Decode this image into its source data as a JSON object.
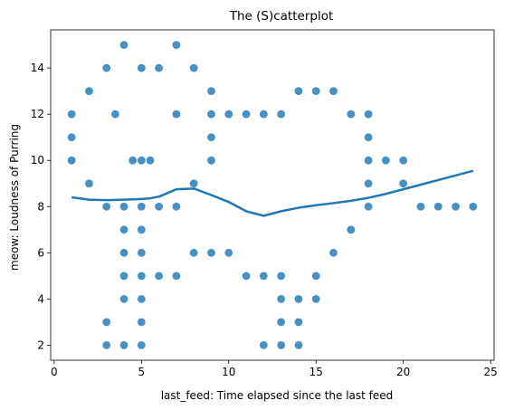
{
  "chart_data": {
    "type": "scatter",
    "title": "The (S)catterplot",
    "xlabel": "last_feed: Time elapsed since the last feed",
    "ylabel": "meow: Loudness of Purring",
    "xlim": [
      -0.2,
      25.2
    ],
    "ylim": [
      1.35,
      15.65
    ],
    "xticks": [
      0,
      5,
      10,
      15,
      20,
      25
    ],
    "yticks": [
      2,
      4,
      6,
      8,
      10,
      12,
      14
    ],
    "grid": false,
    "colors": {
      "points": "#1f77b4",
      "trend": "#1f77b4"
    },
    "points": [
      [
        1,
        12
      ],
      [
        1,
        11
      ],
      [
        1,
        10
      ],
      [
        2,
        13
      ],
      [
        2,
        9
      ],
      [
        3,
        14
      ],
      [
        3,
        8
      ],
      [
        3,
        3
      ],
      [
        3,
        2
      ],
      [
        3.5,
        12
      ],
      [
        4,
        15
      ],
      [
        4,
        8
      ],
      [
        4,
        7
      ],
      [
        4,
        6
      ],
      [
        4,
        5
      ],
      [
        4,
        4
      ],
      [
        4,
        2
      ],
      [
        4.5,
        10
      ],
      [
        5,
        14
      ],
      [
        5,
        10
      ],
      [
        5,
        8
      ],
      [
        5,
        7
      ],
      [
        5,
        6
      ],
      [
        5,
        5
      ],
      [
        5,
        4
      ],
      [
        5,
        3
      ],
      [
        5,
        2
      ],
      [
        5.5,
        10
      ],
      [
        6,
        14
      ],
      [
        6,
        8
      ],
      [
        6,
        5
      ],
      [
        7,
        15
      ],
      [
        7,
        12
      ],
      [
        7,
        8
      ],
      [
        7,
        5
      ],
      [
        8,
        14
      ],
      [
        8,
        9
      ],
      [
        8,
        6
      ],
      [
        9,
        13
      ],
      [
        9,
        12
      ],
      [
        9,
        11
      ],
      [
        9,
        10
      ],
      [
        9,
        6
      ],
      [
        10,
        12
      ],
      [
        10,
        6
      ],
      [
        11,
        12
      ],
      [
        11,
        5
      ],
      [
        12,
        12
      ],
      [
        12,
        5
      ],
      [
        12,
        2
      ],
      [
        13,
        12
      ],
      [
        13,
        5
      ],
      [
        13,
        4
      ],
      [
        13,
        3
      ],
      [
        13,
        2
      ],
      [
        14,
        13
      ],
      [
        14,
        4
      ],
      [
        14,
        3
      ],
      [
        14,
        2
      ],
      [
        15,
        13
      ],
      [
        15,
        5
      ],
      [
        15,
        4
      ],
      [
        16,
        13
      ],
      [
        16,
        6
      ],
      [
        17,
        12
      ],
      [
        17,
        7
      ],
      [
        18,
        12
      ],
      [
        18,
        11
      ],
      [
        18,
        10
      ],
      [
        18,
        9
      ],
      [
        18,
        8
      ],
      [
        19,
        10
      ],
      [
        20,
        10
      ],
      [
        20,
        9
      ],
      [
        21,
        8
      ],
      [
        22,
        8
      ],
      [
        23,
        8
      ],
      [
        24,
        8
      ]
    ],
    "trend": [
      [
        1,
        8.4
      ],
      [
        2,
        8.3
      ],
      [
        3,
        8.28
      ],
      [
        4,
        8.3
      ],
      [
        5,
        8.33
      ],
      [
        5.5,
        8.36
      ],
      [
        6,
        8.43
      ],
      [
        7,
        8.75
      ],
      [
        8,
        8.78
      ],
      [
        9,
        8.5
      ],
      [
        10,
        8.2
      ],
      [
        11,
        7.8
      ],
      [
        12,
        7.6
      ],
      [
        13,
        7.8
      ],
      [
        14,
        7.95
      ],
      [
        15,
        8.06
      ],
      [
        16,
        8.15
      ],
      [
        17,
        8.25
      ],
      [
        18,
        8.38
      ],
      [
        19,
        8.55
      ],
      [
        20,
        8.75
      ],
      [
        21,
        8.95
      ],
      [
        22,
        9.15
      ],
      [
        23,
        9.35
      ],
      [
        24,
        9.55
      ]
    ]
  }
}
